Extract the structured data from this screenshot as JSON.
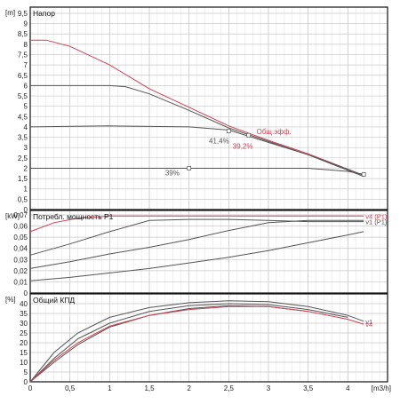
{
  "x_axis": {
    "unit": "[m3/h]",
    "min": 0,
    "max": 4.5,
    "ticks": [
      0,
      0.5,
      1,
      1.5,
      2,
      2.5,
      3,
      3.5,
      4
    ],
    "tick_labels": [
      "0",
      "0,5",
      "1",
      "1,5",
      "2",
      "2,5",
      "3",
      "3,5",
      "4"
    ],
    "minor_step": 0.1
  },
  "chart_data": [
    {
      "type": "line",
      "title": "Напор",
      "y_unit": "[m]",
      "ylim": [
        0,
        9.8
      ],
      "yticks": [
        0,
        0.5,
        1,
        1.5,
        2,
        2.5,
        3,
        3.5,
        4,
        4.5,
        5,
        5.5,
        6,
        6.5,
        7,
        7.5,
        8,
        8.5,
        9,
        9.5
      ],
      "ytick_labels": [
        "0",
        "0,5",
        "1",
        "1,5",
        "2",
        "2,5",
        "3",
        "3,5",
        "4",
        "4,5",
        "5",
        "5,5",
        "6",
        "6,5",
        "7",
        "7,5",
        "8",
        "8,5",
        "9",
        "9,5"
      ],
      "grid": true,
      "series": [
        {
          "color": "#d04050",
          "x": [
            0,
            0.2,
            0.5,
            1,
            1.5,
            2,
            2.5,
            3,
            3.5,
            4,
            4.2
          ],
          "y": [
            8.2,
            8.2,
            7.9,
            7.0,
            5.85,
            4.95,
            4.05,
            3.35,
            2.7,
            1.95,
            1.65
          ]
        },
        {
          "color": "#555555",
          "x": [
            0,
            1,
            1.2,
            1.5,
            2,
            2.5,
            3,
            3.5,
            4,
            4.2
          ],
          "y": [
            6.0,
            6.0,
            5.95,
            5.6,
            4.8,
            3.95,
            3.3,
            2.65,
            1.9,
            1.6
          ]
        },
        {
          "color": "#555555",
          "x": [
            0,
            1,
            2,
            2.5,
            3,
            3.5,
            4,
            4.2
          ],
          "y": [
            4.0,
            4.05,
            4.0,
            3.85,
            3.25,
            2.65,
            1.95,
            1.65
          ]
        },
        {
          "color": "#555555",
          "x": [
            0,
            1,
            2,
            3,
            3.5,
            4,
            4.2
          ],
          "y": [
            2.0,
            2.0,
            2.0,
            2.0,
            2.0,
            1.85,
            1.7
          ]
        }
      ],
      "annotations": [
        {
          "text": "Общ.эфф.",
          "x": 2.85,
          "y": 3.65,
          "color": "#d04050"
        },
        {
          "text": "41,4%",
          "x": 2.25,
          "y": 3.2,
          "color": "#555555"
        },
        {
          "text": "39,2%",
          "x": 2.55,
          "y": 2.95,
          "color": "#d04050"
        },
        {
          "text": "39%",
          "x": 1.7,
          "y": 1.65,
          "color": "#555555"
        }
      ],
      "markers": [
        {
          "x": 2.5,
          "y": 3.8
        },
        {
          "x": 2.75,
          "y": 3.6
        },
        {
          "x": 2.0,
          "y": 2.0
        },
        {
          "x": 4.2,
          "y": 1.7
        }
      ]
    },
    {
      "type": "line",
      "title": "Потребл. мощность P1",
      "y_unit": "[kW]",
      "ylim": [
        0,
        0.074
      ],
      "yticks": [
        0,
        0.01,
        0.02,
        0.03,
        0.04,
        0.05,
        0.06,
        0.07
      ],
      "ytick_labels": [
        "0",
        "0,01",
        "0,02",
        "0,03",
        "0,04",
        "0,05",
        "0,06",
        "0,07"
      ],
      "grid": true,
      "series": [
        {
          "color": "#d04050",
          "label": "v4 (P1)",
          "x": [
            0,
            0.3,
            0.6,
            1,
            1.5,
            2,
            3,
            4,
            4.2
          ],
          "y": [
            0.055,
            0.063,
            0.067,
            0.069,
            0.069,
            0.069,
            0.069,
            0.069,
            0.069
          ]
        },
        {
          "color": "#555555",
          "label": "v1 (P1)",
          "x": [
            0,
            0.5,
            1,
            1.5,
            2,
            2.5,
            3,
            3.5,
            4,
            4.2
          ],
          "y": [
            0.034,
            0.044,
            0.055,
            0.065,
            0.066,
            0.066,
            0.065,
            0.064,
            0.064,
            0.064
          ]
        },
        {
          "color": "#555555",
          "x": [
            0,
            0.5,
            1,
            1.5,
            2,
            2.5,
            3,
            3.5,
            4,
            4.2
          ],
          "y": [
            0.022,
            0.028,
            0.035,
            0.041,
            0.048,
            0.056,
            0.063,
            0.065,
            0.065,
            0.065
          ]
        },
        {
          "color": "#555555",
          "x": [
            0,
            0.5,
            1,
            1.5,
            2,
            2.5,
            3,
            3.5,
            4,
            4.2
          ],
          "y": [
            0.011,
            0.014,
            0.018,
            0.022,
            0.027,
            0.032,
            0.038,
            0.045,
            0.052,
            0.055
          ]
        }
      ]
    },
    {
      "type": "line",
      "title": "Общий КПД",
      "y_unit": "[%]",
      "ylim": [
        0,
        45
      ],
      "yticks": [
        0,
        5,
        10,
        15,
        20,
        25,
        30,
        35,
        40
      ],
      "ytick_labels": [
        "0",
        "5",
        "10",
        "15",
        "20",
        "25",
        "30",
        "35",
        "40"
      ],
      "grid": true,
      "series": [
        {
          "color": "#555555",
          "label": "v1",
          "x": [
            0,
            0.3,
            0.6,
            1,
            1.5,
            2,
            2.5,
            3,
            3.5,
            4,
            4.2
          ],
          "y": [
            0,
            15,
            25,
            33,
            38,
            40.5,
            41.5,
            41,
            38.5,
            34,
            31
          ]
        },
        {
          "color": "#555555",
          "x": [
            0,
            0.3,
            0.6,
            1,
            1.5,
            2,
            2.5,
            3,
            3.5,
            4
          ],
          "y": [
            0,
            12,
            22,
            30,
            36,
            39,
            40,
            39.5,
            37,
            33
          ]
        },
        {
          "color": "#555555",
          "x": [
            0,
            0.3,
            0.6,
            1,
            1.5,
            2,
            2.5,
            3,
            3.5
          ],
          "y": [
            0,
            10,
            19,
            28,
            34,
            37.5,
            39,
            38.5,
            36
          ]
        },
        {
          "color": "#d04050",
          "label": "v4",
          "x": [
            0,
            0.3,
            0.6,
            1,
            1.5,
            2,
            2.5,
            3,
            3.5,
            4,
            4.2
          ],
          "y": [
            0,
            11,
            20,
            28.5,
            34,
            37,
            38.5,
            38.5,
            36,
            32,
            29.5
          ]
        }
      ]
    }
  ]
}
